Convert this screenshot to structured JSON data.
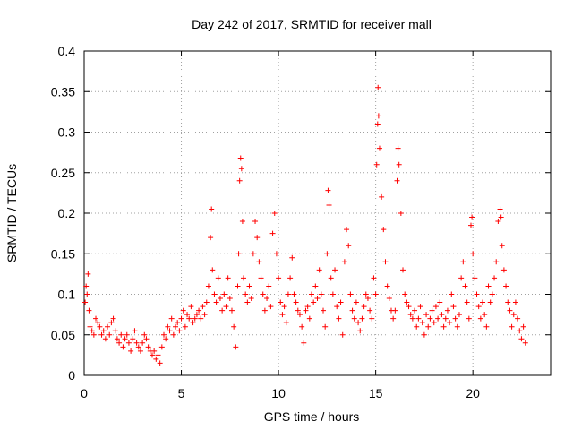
{
  "chart_data": {
    "type": "scatter",
    "title": "Day 242 of 2017, SRMTID for receiver mall",
    "xlabel": "GPS time / hours",
    "ylabel": "SRMTID / TECUs",
    "xlim": [
      0,
      24
    ],
    "ylim": [
      0,
      0.4
    ],
    "x_ticks": [
      0,
      5,
      10,
      15,
      20
    ],
    "x_tick_labels": [
      "0",
      "5",
      "10",
      "15",
      "20"
    ],
    "y_ticks": [
      0,
      0.05,
      0.1,
      0.15,
      0.2,
      0.25,
      0.3,
      0.35,
      0.4
    ],
    "y_tick_labels": [
      "0",
      "0.05",
      "0.1",
      "0.15",
      "0.2",
      "0.25",
      "0.3",
      "0.35",
      "0.4"
    ],
    "grid": true,
    "marker": "plus",
    "color": "#ff0000",
    "series": [
      {
        "name": "SRMTID",
        "points": [
          [
            0.05,
            0.09
          ],
          [
            0.1,
            0.11
          ],
          [
            0.15,
            0.1
          ],
          [
            0.2,
            0.125
          ],
          [
            0.25,
            0.08
          ],
          [
            0.3,
            0.06
          ],
          [
            0.4,
            0.055
          ],
          [
            0.5,
            0.05
          ],
          [
            0.6,
            0.07
          ],
          [
            0.7,
            0.065
          ],
          [
            0.8,
            0.06
          ],
          [
            0.9,
            0.05
          ],
          [
            1.0,
            0.055
          ],
          [
            1.1,
            0.045
          ],
          [
            1.2,
            0.06
          ],
          [
            1.3,
            0.05
          ],
          [
            1.4,
            0.065
          ],
          [
            1.5,
            0.07
          ],
          [
            1.6,
            0.055
          ],
          [
            1.7,
            0.045
          ],
          [
            1.8,
            0.04
          ],
          [
            1.9,
            0.05
          ],
          [
            2.0,
            0.035
          ],
          [
            2.1,
            0.045
          ],
          [
            2.2,
            0.05
          ],
          [
            2.3,
            0.04
          ],
          [
            2.4,
            0.03
          ],
          [
            2.5,
            0.045
          ],
          [
            2.6,
            0.055
          ],
          [
            2.7,
            0.04
          ],
          [
            2.8,
            0.035
          ],
          [
            2.9,
            0.03
          ],
          [
            3.0,
            0.04
          ],
          [
            3.1,
            0.05
          ],
          [
            3.2,
            0.045
          ],
          [
            3.3,
            0.035
          ],
          [
            3.4,
            0.03
          ],
          [
            3.5,
            0.025
          ],
          [
            3.6,
            0.03
          ],
          [
            3.7,
            0.02
          ],
          [
            3.8,
            0.025
          ],
          [
            3.9,
            0.015
          ],
          [
            4.0,
            0.035
          ],
          [
            4.1,
            0.05
          ],
          [
            4.2,
            0.045
          ],
          [
            4.3,
            0.06
          ],
          [
            4.4,
            0.055
          ],
          [
            4.5,
            0.07
          ],
          [
            4.6,
            0.05
          ],
          [
            4.7,
            0.06
          ],
          [
            4.8,
            0.065
          ],
          [
            4.9,
            0.055
          ],
          [
            5.0,
            0.07
          ],
          [
            5.1,
            0.08
          ],
          [
            5.2,
            0.06
          ],
          [
            5.3,
            0.075
          ],
          [
            5.4,
            0.07
          ],
          [
            5.5,
            0.085
          ],
          [
            5.6,
            0.065
          ],
          [
            5.7,
            0.07
          ],
          [
            5.8,
            0.075
          ],
          [
            5.9,
            0.08
          ],
          [
            6.0,
            0.07
          ],
          [
            6.1,
            0.085
          ],
          [
            6.2,
            0.075
          ],
          [
            6.3,
            0.09
          ],
          [
            6.4,
            0.11
          ],
          [
            6.5,
            0.17
          ],
          [
            6.55,
            0.205
          ],
          [
            6.6,
            0.13
          ],
          [
            6.7,
            0.1
          ],
          [
            6.8,
            0.09
          ],
          [
            6.9,
            0.12
          ],
          [
            7.0,
            0.095
          ],
          [
            7.1,
            0.08
          ],
          [
            7.2,
            0.1
          ],
          [
            7.3,
            0.085
          ],
          [
            7.4,
            0.12
          ],
          [
            7.5,
            0.095
          ],
          [
            7.6,
            0.08
          ],
          [
            7.7,
            0.06
          ],
          [
            7.8,
            0.035
          ],
          [
            7.9,
            0.11
          ],
          [
            7.95,
            0.15
          ],
          [
            8.0,
            0.24
          ],
          [
            8.05,
            0.268
          ],
          [
            8.1,
            0.255
          ],
          [
            8.15,
            0.19
          ],
          [
            8.2,
            0.12
          ],
          [
            8.3,
            0.1
          ],
          [
            8.4,
            0.09
          ],
          [
            8.5,
            0.11
          ],
          [
            8.6,
            0.095
          ],
          [
            8.7,
            0.15
          ],
          [
            8.8,
            0.19
          ],
          [
            8.9,
            0.17
          ],
          [
            9.0,
            0.14
          ],
          [
            9.1,
            0.12
          ],
          [
            9.2,
            0.1
          ],
          [
            9.3,
            0.08
          ],
          [
            9.4,
            0.095
          ],
          [
            9.5,
            0.11
          ],
          [
            9.6,
            0.085
          ],
          [
            9.7,
            0.175
          ],
          [
            9.8,
            0.2
          ],
          [
            9.9,
            0.15
          ],
          [
            10.0,
            0.12
          ],
          [
            10.1,
            0.09
          ],
          [
            10.2,
            0.075
          ],
          [
            10.3,
            0.085
          ],
          [
            10.4,
            0.065
          ],
          [
            10.5,
            0.1
          ],
          [
            10.6,
            0.12
          ],
          [
            10.7,
            0.145
          ],
          [
            10.8,
            0.1
          ],
          [
            10.9,
            0.09
          ],
          [
            11.0,
            0.08
          ],
          [
            11.1,
            0.075
          ],
          [
            11.2,
            0.06
          ],
          [
            11.3,
            0.04
          ],
          [
            11.4,
            0.08
          ],
          [
            11.5,
            0.085
          ],
          [
            11.6,
            0.07
          ],
          [
            11.7,
            0.1
          ],
          [
            11.8,
            0.09
          ],
          [
            11.9,
            0.11
          ],
          [
            12.0,
            0.095
          ],
          [
            12.1,
            0.13
          ],
          [
            12.2,
            0.1
          ],
          [
            12.3,
            0.08
          ],
          [
            12.4,
            0.06
          ],
          [
            12.5,
            0.15
          ],
          [
            12.55,
            0.228
          ],
          [
            12.6,
            0.21
          ],
          [
            12.7,
            0.12
          ],
          [
            12.8,
            0.1
          ],
          [
            12.9,
            0.13
          ],
          [
            13.0,
            0.085
          ],
          [
            13.1,
            0.07
          ],
          [
            13.2,
            0.09
          ],
          [
            13.3,
            0.05
          ],
          [
            13.4,
            0.14
          ],
          [
            13.5,
            0.18
          ],
          [
            13.6,
            0.16
          ],
          [
            13.7,
            0.1
          ],
          [
            13.8,
            0.08
          ],
          [
            13.9,
            0.07
          ],
          [
            14.0,
            0.09
          ],
          [
            14.1,
            0.065
          ],
          [
            14.2,
            0.055
          ],
          [
            14.3,
            0.07
          ],
          [
            14.4,
            0.085
          ],
          [
            14.5,
            0.1
          ],
          [
            14.6,
            0.095
          ],
          [
            14.7,
            0.08
          ],
          [
            14.8,
            0.07
          ],
          [
            14.9,
            0.12
          ],
          [
            15.0,
            0.1
          ],
          [
            15.05,
            0.26
          ],
          [
            15.1,
            0.31
          ],
          [
            15.12,
            0.355
          ],
          [
            15.15,
            0.32
          ],
          [
            15.2,
            0.28
          ],
          [
            15.3,
            0.22
          ],
          [
            15.4,
            0.18
          ],
          [
            15.5,
            0.14
          ],
          [
            15.6,
            0.11
          ],
          [
            15.7,
            0.095
          ],
          [
            15.8,
            0.08
          ],
          [
            15.9,
            0.07
          ],
          [
            16.0,
            0.08
          ],
          [
            16.1,
            0.24
          ],
          [
            16.15,
            0.28
          ],
          [
            16.2,
            0.26
          ],
          [
            16.3,
            0.2
          ],
          [
            16.4,
            0.13
          ],
          [
            16.5,
            0.1
          ],
          [
            16.6,
            0.09
          ],
          [
            16.7,
            0.085
          ],
          [
            16.8,
            0.075
          ],
          [
            16.9,
            0.07
          ],
          [
            17.0,
            0.08
          ],
          [
            17.1,
            0.06
          ],
          [
            17.2,
            0.07
          ],
          [
            17.3,
            0.085
          ],
          [
            17.4,
            0.065
          ],
          [
            17.5,
            0.05
          ],
          [
            17.6,
            0.075
          ],
          [
            17.7,
            0.06
          ],
          [
            17.8,
            0.07
          ],
          [
            17.9,
            0.08
          ],
          [
            18.0,
            0.065
          ],
          [
            18.1,
            0.085
          ],
          [
            18.2,
            0.07
          ],
          [
            18.3,
            0.09
          ],
          [
            18.4,
            0.075
          ],
          [
            18.5,
            0.06
          ],
          [
            18.6,
            0.07
          ],
          [
            18.7,
            0.08
          ],
          [
            18.8,
            0.065
          ],
          [
            18.9,
            0.1
          ],
          [
            19.0,
            0.085
          ],
          [
            19.1,
            0.07
          ],
          [
            19.2,
            0.06
          ],
          [
            19.3,
            0.075
          ],
          [
            19.4,
            0.12
          ],
          [
            19.5,
            0.14
          ],
          [
            19.6,
            0.11
          ],
          [
            19.7,
            0.09
          ],
          [
            19.8,
            0.07
          ],
          [
            19.9,
            0.185
          ],
          [
            19.95,
            0.195
          ],
          [
            20.0,
            0.15
          ],
          [
            20.1,
            0.12
          ],
          [
            20.2,
            0.1
          ],
          [
            20.3,
            0.085
          ],
          [
            20.4,
            0.07
          ],
          [
            20.5,
            0.09
          ],
          [
            20.6,
            0.075
          ],
          [
            20.7,
            0.06
          ],
          [
            20.8,
            0.11
          ],
          [
            20.9,
            0.09
          ],
          [
            21.0,
            0.1
          ],
          [
            21.1,
            0.12
          ],
          [
            21.2,
            0.14
          ],
          [
            21.3,
            0.19
          ],
          [
            21.4,
            0.205
          ],
          [
            21.45,
            0.195
          ],
          [
            21.5,
            0.16
          ],
          [
            21.6,
            0.13
          ],
          [
            21.7,
            0.11
          ],
          [
            21.8,
            0.09
          ],
          [
            21.9,
            0.08
          ],
          [
            22.0,
            0.06
          ],
          [
            22.1,
            0.075
          ],
          [
            22.2,
            0.09
          ],
          [
            22.3,
            0.07
          ],
          [
            22.4,
            0.055
          ],
          [
            22.5,
            0.045
          ],
          [
            22.6,
            0.06
          ],
          [
            22.7,
            0.04
          ]
        ]
      }
    ]
  }
}
